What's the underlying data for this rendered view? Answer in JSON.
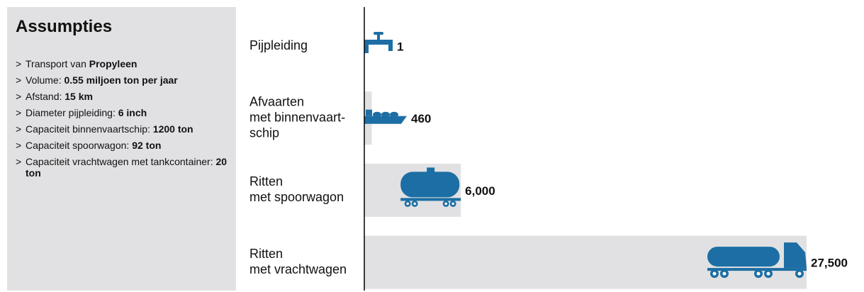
{
  "panel": {
    "title": "Assumpties",
    "bullet": ">",
    "items": [
      {
        "text": "Transport van ",
        "bold": "Propyleen"
      },
      {
        "text": "Volume: ",
        "bold": "0.55 miljoen ton per jaar"
      },
      {
        "text": "Afstand: ",
        "bold": "15 km"
      },
      {
        "text": "Diameter pijpleiding: ",
        "bold": "6 inch"
      },
      {
        "text": "Capaciteit binnenvaartschip: ",
        "bold": "1200 ton"
      },
      {
        "text": "Capaciteit spoorwagon: ",
        "bold": "92 ton"
      },
      {
        "text": "Capaciteit vrachtwagen met tankcontainer: ",
        "bold": "20 ton"
      }
    ]
  },
  "chart_data": {
    "type": "bar",
    "categories": [
      [
        "Pijpleiding"
      ],
      [
        "Afvaarten",
        "met binnenvaart-",
        "schip"
      ],
      [
        "Ritten",
        "met spoorwagon"
      ],
      [
        "Ritten",
        "met vrachtwagen"
      ]
    ],
    "values": [
      1,
      460,
      6000,
      27500
    ],
    "value_labels": [
      "1",
      "460",
      "6,000",
      "27,500"
    ],
    "color": "#e1e1e3",
    "icon_color": "#1c6ea4"
  }
}
